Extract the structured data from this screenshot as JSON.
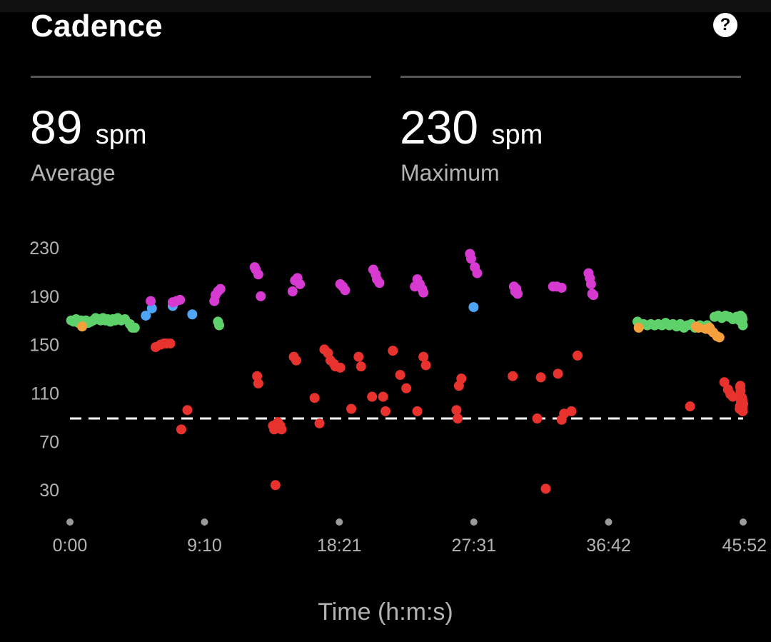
{
  "header": {
    "title": "Cadence",
    "help_icon": "help-icon",
    "help_glyph": "?"
  },
  "stats": {
    "average": {
      "value": "89",
      "unit": "spm",
      "label": "Average"
    },
    "maximum": {
      "value": "230",
      "unit": "spm",
      "label": "Maximum"
    }
  },
  "colors": {
    "background": "#000000",
    "red": "#e8322e",
    "magenta": "#d63ad0",
    "green": "#5fd16b",
    "blue": "#4fa5f5",
    "orange": "#f5a03c",
    "reference_line": "#ffffff",
    "tick_text": "#b3b3b3"
  },
  "chart_data": {
    "type": "scatter",
    "xlabel": "Time (h:m:s)",
    "ylabel": "",
    "x_unit": "seconds",
    "xlim": [
      0,
      2752
    ],
    "ylim": [
      10,
      230
    ],
    "y_ticks": [
      30,
      70,
      110,
      150,
      190,
      230
    ],
    "x_ticks": [
      {
        "value": 0,
        "label": "0:00"
      },
      {
        "value": 550,
        "label": "9:10"
      },
      {
        "value": 1101,
        "label": "18:21"
      },
      {
        "value": 1651,
        "label": "27:31"
      },
      {
        "value": 2202,
        "label": "36:42"
      },
      {
        "value": 2752,
        "label": "45:52"
      }
    ],
    "reference_line": {
      "value": 89,
      "style": "dashed"
    },
    "legend": "none",
    "grid": false,
    "series": [
      {
        "color_key": "green",
        "points": [
          [
            5,
            170
          ],
          [
            15,
            169
          ],
          [
            25,
            171
          ],
          [
            35,
            168
          ],
          [
            45,
            170
          ],
          [
            55,
            169
          ],
          [
            65,
            170
          ],
          [
            75,
            168
          ],
          [
            85,
            169
          ],
          [
            95,
            170
          ],
          [
            105,
            172
          ],
          [
            115,
            171
          ],
          [
            125,
            170
          ],
          [
            135,
            172
          ],
          [
            145,
            170
          ],
          [
            155,
            171
          ],
          [
            165,
            169
          ],
          [
            175,
            171
          ],
          [
            185,
            170
          ],
          [
            195,
            172
          ],
          [
            210,
            170
          ],
          [
            225,
            171
          ],
          [
            245,
            167
          ],
          [
            255,
            164
          ],
          [
            265,
            164
          ],
          [
            605,
            169
          ],
          [
            610,
            166
          ],
          [
            2320,
            169
          ],
          [
            2330,
            166
          ],
          [
            2345,
            167
          ],
          [
            2360,
            166
          ],
          [
            2375,
            167
          ],
          [
            2390,
            166
          ],
          [
            2405,
            167
          ],
          [
            2420,
            166
          ],
          [
            2435,
            168
          ],
          [
            2450,
            166
          ],
          [
            2465,
            167
          ],
          [
            2480,
            165
          ],
          [
            2495,
            167
          ],
          [
            2510,
            164
          ],
          [
            2525,
            166
          ],
          [
            2540,
            167
          ],
          [
            2555,
            164
          ],
          [
            2575,
            166
          ],
          [
            2590,
            164
          ],
          [
            2605,
            166
          ],
          [
            2635,
            173
          ],
          [
            2650,
            174
          ],
          [
            2665,
            172
          ],
          [
            2680,
            174
          ],
          [
            2695,
            173
          ],
          [
            2710,
            171
          ],
          [
            2725,
            173
          ],
          [
            2740,
            172
          ],
          [
            2755,
            170
          ],
          [
            2770,
            172
          ],
          [
            2785,
            171
          ],
          [
            2800,
            174
          ],
          [
            2815,
            173
          ],
          [
            2830,
            172
          ],
          [
            2845,
            170
          ],
          [
            2860,
            173
          ],
          [
            2875,
            172
          ],
          [
            2890,
            171
          ],
          [
            2905,
            166
          ]
        ]
      },
      {
        "color_key": "blue",
        "points": [
          [
            310,
            174
          ],
          [
            335,
            180
          ],
          [
            420,
            182
          ],
          [
            500,
            175
          ],
          [
            1650,
            181
          ]
        ]
      },
      {
        "color_key": "magenta",
        "points": [
          [
            330,
            186
          ],
          [
            420,
            185
          ],
          [
            435,
            186
          ],
          [
            450,
            187
          ],
          [
            590,
            186
          ],
          [
            595,
            191
          ],
          [
            605,
            194
          ],
          [
            615,
            196
          ],
          [
            755,
            214
          ],
          [
            760,
            212
          ],
          [
            770,
            208
          ],
          [
            780,
            190
          ],
          [
            910,
            194
          ],
          [
            920,
            203
          ],
          [
            930,
            205
          ],
          [
            940,
            200
          ],
          [
            1105,
            200
          ],
          [
            1115,
            198
          ],
          [
            1125,
            195
          ],
          [
            1240,
            212
          ],
          [
            1250,
            208
          ],
          [
            1255,
            204
          ],
          [
            1265,
            201
          ],
          [
            1410,
            198
          ],
          [
            1420,
            204
          ],
          [
            1430,
            200
          ],
          [
            1440,
            196
          ],
          [
            1445,
            193
          ],
          [
            1635,
            225
          ],
          [
            1640,
            221
          ],
          [
            1655,
            214
          ],
          [
            1665,
            209
          ],
          [
            1815,
            198
          ],
          [
            1820,
            194
          ],
          [
            1825,
            196
          ],
          [
            1830,
            192
          ],
          [
            1975,
            198
          ],
          [
            1990,
            198
          ],
          [
            2010,
            197
          ],
          [
            2120,
            209
          ],
          [
            2125,
            205
          ],
          [
            2130,
            200
          ],
          [
            2135,
            192
          ],
          [
            2140,
            191
          ]
        ]
      },
      {
        "color_key": "orange",
        "points": [
          [
            50,
            165
          ],
          [
            2325,
            164
          ],
          [
            2560,
            165
          ],
          [
            2570,
            164
          ],
          [
            2600,
            163
          ],
          [
            2620,
            162
          ],
          [
            2615,
            164
          ],
          [
            2630,
            160
          ],
          [
            2645,
            157
          ],
          [
            2655,
            156
          ]
        ]
      },
      {
        "color_key": "red",
        "points": [
          [
            350,
            148
          ],
          [
            370,
            150
          ],
          [
            385,
            151
          ],
          [
            395,
            151
          ],
          [
            410,
            151
          ],
          [
            455,
            80
          ],
          [
            480,
            96
          ],
          [
            765,
            124
          ],
          [
            770,
            118
          ],
          [
            830,
            83
          ],
          [
            835,
            80
          ],
          [
            840,
            34
          ],
          [
            850,
            86
          ],
          [
            860,
            83
          ],
          [
            865,
            80
          ],
          [
            915,
            140
          ],
          [
            925,
            137
          ],
          [
            1000,
            106
          ],
          [
            1020,
            85
          ],
          [
            1040,
            146
          ],
          [
            1055,
            143
          ],
          [
            1065,
            137
          ],
          [
            1080,
            134
          ],
          [
            1085,
            132
          ],
          [
            1105,
            131
          ],
          [
            1150,
            97
          ],
          [
            1180,
            140
          ],
          [
            1190,
            132
          ],
          [
            1235,
            107
          ],
          [
            1280,
            107
          ],
          [
            1290,
            95
          ],
          [
            1320,
            145
          ],
          [
            1350,
            125
          ],
          [
            1375,
            114
          ],
          [
            1420,
            95
          ],
          [
            1445,
            140
          ],
          [
            1455,
            133
          ],
          [
            1580,
            96
          ],
          [
            1585,
            89
          ],
          [
            1590,
            116
          ],
          [
            1600,
            122
          ],
          [
            1810,
            124
          ],
          [
            1910,
            89
          ],
          [
            1925,
            123
          ],
          [
            1945,
            31
          ],
          [
            1995,
            126
          ],
          [
            2010,
            88
          ],
          [
            2020,
            93
          ],
          [
            2050,
            95
          ],
          [
            2075,
            141
          ],
          [
            2535,
            99
          ],
          [
            2675,
            119
          ],
          [
            2690,
            113
          ],
          [
            2700,
            109
          ],
          [
            2710,
            107
          ],
          [
            2750,
            95
          ],
          [
            2760,
            97
          ],
          [
            2770,
            99
          ],
          [
            2780,
            115
          ],
          [
            2790,
            116
          ],
          [
            2800,
            112
          ],
          [
            2810,
            107
          ],
          [
            2820,
            103
          ],
          [
            2835,
            104
          ],
          [
            2845,
            106
          ],
          [
            2855,
            101
          ],
          [
            2870,
            106
          ],
          [
            2885,
            104
          ],
          [
            2890,
            98
          ],
          [
            2905,
            101
          ],
          [
            2920,
            101
          ]
        ]
      }
    ]
  }
}
